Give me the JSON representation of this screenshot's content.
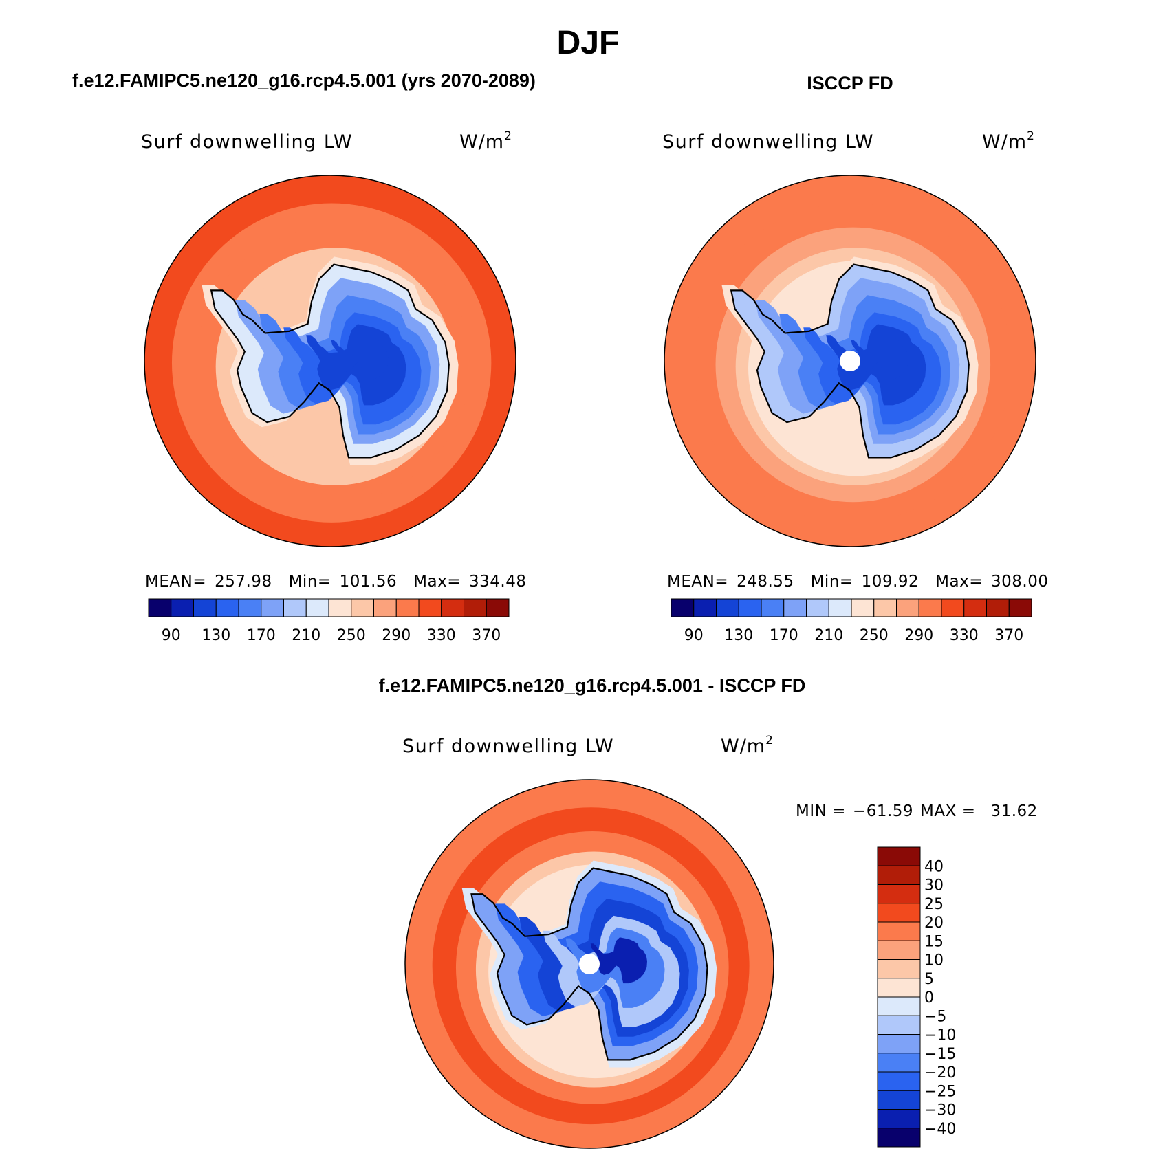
{
  "figure": {
    "title": "DJF",
    "units_base": "W/m",
    "units_exp": "2",
    "colors": {
      "div_palette": [
        "#08006c",
        "#0a1fb0",
        "#1444d6",
        "#2a63f0",
        "#4a80f5",
        "#7ea2f7",
        "#b0c8fa",
        "#dce9fb",
        "#fde4d4",
        "#fcc7a8",
        "#fba27c",
        "#fb7a4c",
        "#f24a1e",
        "#d42d10",
        "#b11d08",
        "#8a0a06"
      ],
      "coast": "#000000"
    }
  },
  "chart_data": [
    {
      "type": "heatmap",
      "projection": "south-polar-stereographic",
      "header": "f.e12.FAMIPC5.ne120_g16.rcp4.5.001 (yrs 2070-2089)",
      "variable": "Surf downwelling LW",
      "stats": {
        "mean_label": "MEAN=",
        "mean": "257.98",
        "min_label": "Min=",
        "min": "101.56",
        "max_label": "Max=",
        "max": "334.48"
      },
      "colorbar": {
        "orientation": "horizontal",
        "levels": [
          70,
          90,
          110,
          130,
          150,
          170,
          190,
          210,
          230,
          250,
          270,
          290,
          310,
          330,
          350,
          370,
          390
        ],
        "tick_labels": [
          "90",
          "130",
          "170",
          "210",
          "250",
          "290",
          "330",
          "370"
        ]
      },
      "field": {
        "ring_values": [
          320,
          300,
          290,
          265,
          250
        ],
        "interior_values": [
          240,
          210,
          185,
          160,
          140,
          125,
          110
        ]
      }
    },
    {
      "type": "heatmap",
      "projection": "south-polar-stereographic",
      "header": "ISCCP FD",
      "variable": "Surf downwelling LW",
      "stats": {
        "mean_label": "MEAN=",
        "mean": "248.55",
        "min_label": "Min=",
        "min": "109.92",
        "max_label": "Max=",
        "max": "308.00"
      },
      "colorbar": {
        "orientation": "horizontal",
        "levels": [
          70,
          90,
          110,
          130,
          150,
          170,
          190,
          210,
          230,
          250,
          270,
          290,
          310,
          330,
          350,
          370,
          390
        ],
        "tick_labels": [
          "90",
          "130",
          "170",
          "210",
          "250",
          "290",
          "330",
          "370"
        ]
      },
      "field": {
        "ring_values": [
          300,
          290,
          270,
          255,
          245
        ],
        "interior_values": [
          230,
          205,
          180,
          160,
          140,
          125,
          115
        ]
      }
    },
    {
      "type": "heatmap",
      "projection": "south-polar-stereographic",
      "header": "f.e12.FAMIPC5.ne120_g16.rcp4.5.001 - ISCCP FD",
      "variable": "Surf downwelling LW",
      "stats": {
        "min_label": "MIN =",
        "min": "−61.59",
        "max_label": "MAX =",
        "max": "31.62"
      },
      "colorbar": {
        "orientation": "vertical",
        "levels": [
          -50,
          -40,
          -30,
          -25,
          -20,
          -15,
          -10,
          -5,
          0,
          5,
          10,
          15,
          20,
          25,
          30,
          40,
          50
        ],
        "tick_labels": [
          "−40",
          "−30",
          "−25",
          "−20",
          "−15",
          "−10",
          "−5",
          "0",
          "5",
          "10",
          "15",
          "20",
          "25",
          "30",
          "40"
        ]
      },
      "field": {
        "ring_values": [
          18,
          22,
          15,
          8,
          3
        ],
        "interior_values": [
          -3,
          -12,
          -22,
          -30,
          -8,
          -18,
          -35
        ]
      }
    }
  ]
}
